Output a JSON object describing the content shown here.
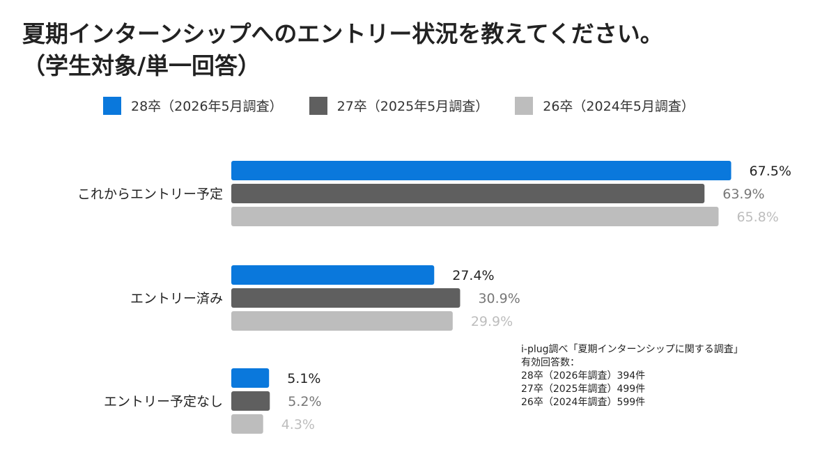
{
  "title": {
    "line1": "夏期インターンシップへのエントリー状況を教えてください。",
    "line2": "（学生対象/単一回答）"
  },
  "colors": {
    "series_28": "#0A78DC",
    "series_27": "#5F5F5F",
    "series_26": "#BDBDBD",
    "label_28": "#222222",
    "label_27": "#777777",
    "label_26": "#BDBDBD"
  },
  "legend": [
    {
      "label": "28卒（2026年5月調査）"
    },
    {
      "label": "27卒（2025年5月調査）"
    },
    {
      "label": "26卒（2024年5月調査）"
    }
  ],
  "chart_data": {
    "type": "bar",
    "orientation": "horizontal",
    "categories": [
      "これからエントリー予定",
      "エントリー済み",
      "エントリー予定なし"
    ],
    "series": [
      {
        "name": "28卒（2026年5月調査）",
        "values": [
          67.5,
          27.4,
          5.1
        ]
      },
      {
        "name": "27卒（2025年5月調査）",
        "values": [
          63.9,
          30.9,
          5.2
        ]
      },
      {
        "name": "26卒（2024年5月調査）",
        "values": [
          65.8,
          29.9,
          4.3
        ]
      }
    ],
    "data_labels": [
      [
        "67.5%",
        "27.4%",
        "5.1%"
      ],
      [
        "63.9%",
        "30.9%",
        "5.2%"
      ],
      [
        "65.8%",
        "29.9%",
        "4.3%"
      ]
    ],
    "unit": "%",
    "xlim": [
      0,
      70
    ],
    "grid": false,
    "legend_position": "top"
  },
  "note": {
    "line1": "i-plug調べ「夏期インターンシップに関する調査」",
    "line2": "有効回答数：",
    "line3": "28卒（2026年調査）394件",
    "line4": "27卒（2025年調査）499件",
    "line5": "26卒（2024年調査）599件"
  }
}
